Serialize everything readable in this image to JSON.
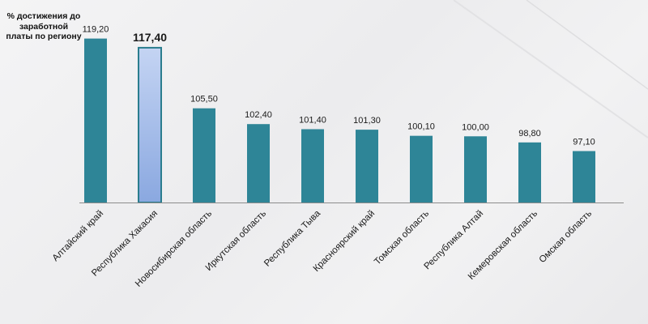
{
  "chart_data": {
    "type": "bar",
    "ylabel": "% достижения до заработной платы по региону",
    "categories": [
      "Алтайский край",
      "Республика Хакасия",
      "Новосибирская область",
      "Иркутская область",
      "Республика Тыва",
      "Красноярский край",
      "Томская область",
      "Республика Алтай",
      "Кемеровская область",
      "Омская область"
    ],
    "values": [
      119.2,
      117.4,
      105.5,
      102.4,
      101.4,
      101.3,
      100.1,
      100.0,
      98.8,
      97.1
    ],
    "value_labels": [
      "119,20",
      "117,40",
      "105,50",
      "102,40",
      "101,40",
      "101,30",
      "100,10",
      "100,00",
      "98,80",
      "97,10"
    ],
    "highlight_index": 1,
    "ylim": [
      87,
      122
    ],
    "grid": false,
    "legend": "none",
    "colors": {
      "bar": "#2e8597",
      "highlight_fill_top": "#c4d4f3",
      "highlight_fill_bottom": "#8aa8e0",
      "highlight_stroke": "#2a7d8e",
      "axis": "#8c8c8c",
      "label": "#1a1a1a"
    }
  }
}
